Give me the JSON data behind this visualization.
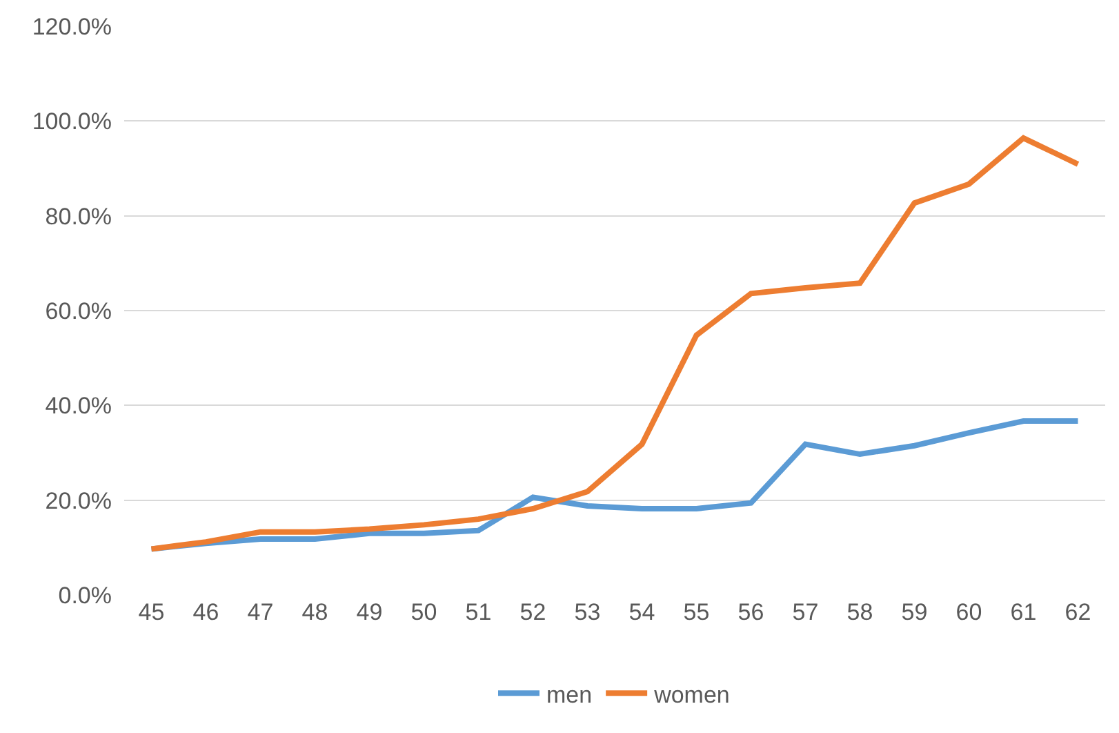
{
  "chart_data": {
    "type": "line",
    "categories": [
      "45",
      "46",
      "47",
      "48",
      "49",
      "50",
      "51",
      "52",
      "53",
      "54",
      "55",
      "56",
      "57",
      "58",
      "59",
      "60",
      "61",
      "62"
    ],
    "series": [
      {
        "name": "men",
        "color": "#5b9bd5",
        "values": [
          9.7,
          10.9,
          11.8,
          11.8,
          13,
          13,
          13.6,
          20.6,
          18.8,
          18.2,
          18.2,
          19.4,
          31.8,
          29.7,
          31.5,
          34.2,
          36.7,
          36.7
        ]
      },
      {
        "name": "women",
        "color": "#ed7d31",
        "values": [
          9.7,
          11.2,
          13.3,
          13.3,
          13.9,
          14.8,
          16,
          18.2,
          21.8,
          31.8,
          54.8,
          63.6,
          64.8,
          65.8,
          82.7,
          86.7,
          96.4,
          90.9
        ]
      }
    ],
    "ylim": [
      0,
      120
    ],
    "yticks": [
      {
        "value": 0,
        "label": "0.0%"
      },
      {
        "value": 20,
        "label": "20.0%"
      },
      {
        "value": 40,
        "label": "40.0%"
      },
      {
        "value": 60,
        "label": "60.0%"
      },
      {
        "value": 80,
        "label": "80.0%"
      },
      {
        "value": 100,
        "label": "100.0%"
      },
      {
        "value": 120,
        "label": "120.0%"
      }
    ],
    "grid": "y",
    "legend": "bottom",
    "marker": "none",
    "line_style": "solid"
  }
}
